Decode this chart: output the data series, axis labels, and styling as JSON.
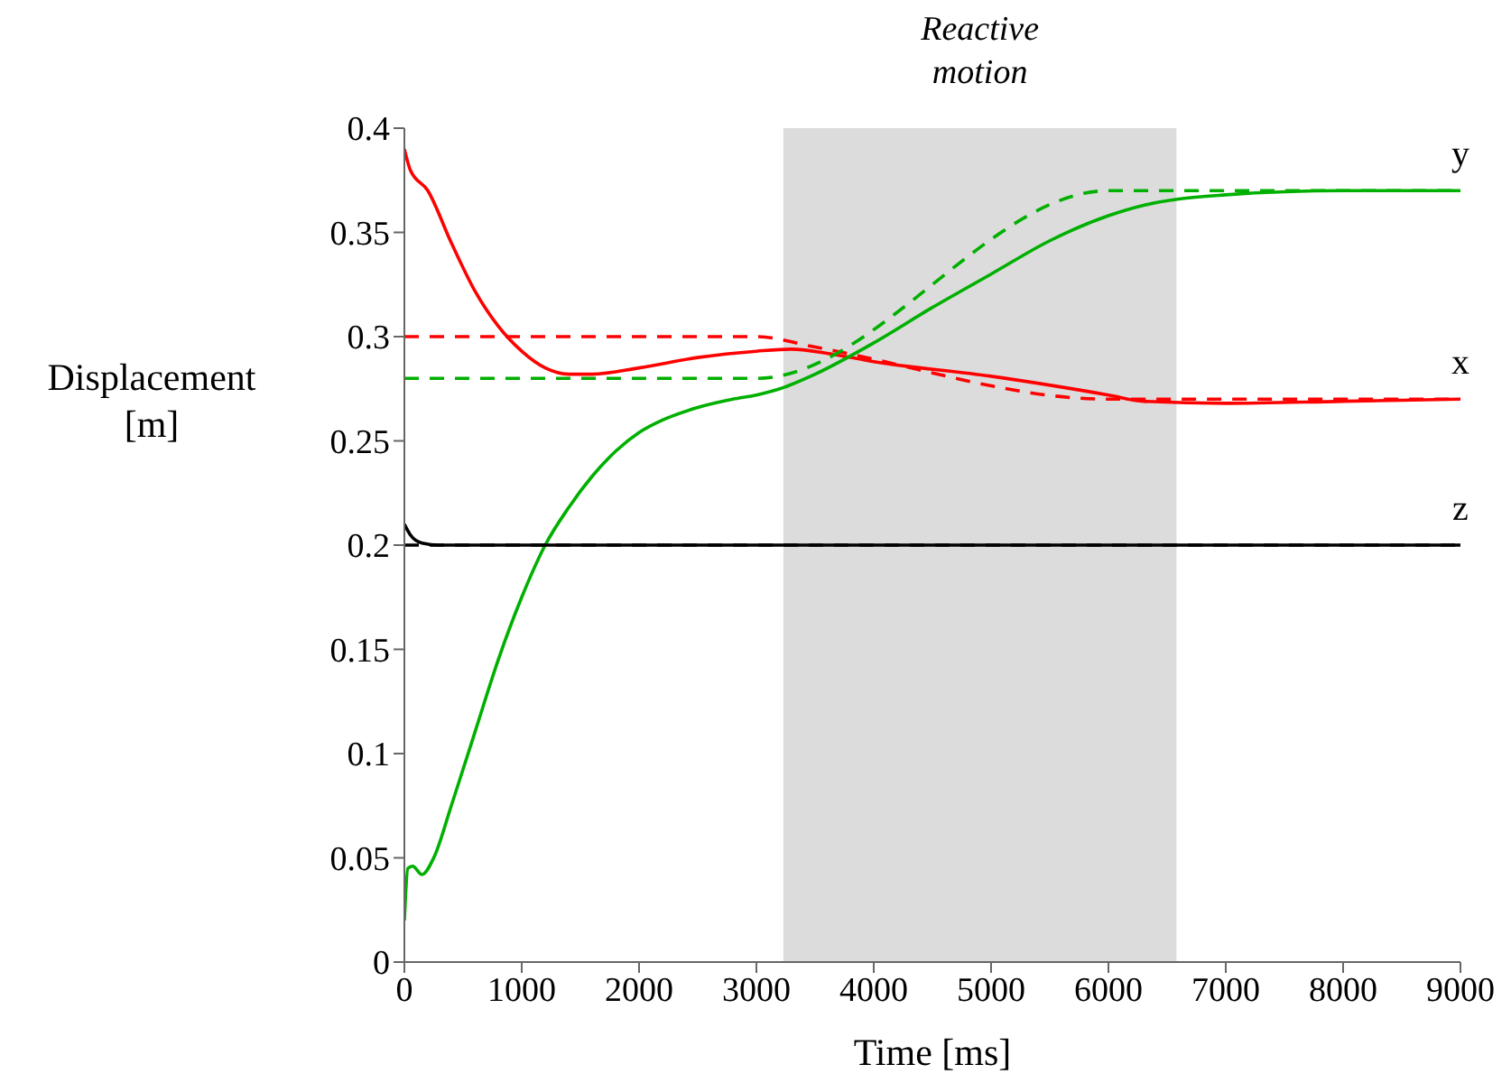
{
  "chart_data": {
    "type": "line",
    "xlabel": "Time [ms]",
    "ylabel": "Displacement [m]",
    "xlim": [
      0,
      9000
    ],
    "xticks": [
      0,
      1000,
      2000,
      3000,
      4000,
      5000,
      6000,
      7000,
      8000,
      9000
    ],
    "ylim": [
      0,
      0.4
    ],
    "yticks": [
      0,
      0.05,
      0.1,
      0.15,
      0.2,
      0.25,
      0.3,
      0.35,
      0.4
    ],
    "grid": false,
    "legend": false,
    "marker": "none",
    "bands": [
      {
        "axis": "x",
        "from": 3230,
        "to": 6580,
        "label": "Reactive motion",
        "color": "#dcdcdc"
      }
    ],
    "series": [
      {
        "name": "x",
        "color": "#ff0000",
        "line_style": "solid",
        "x": [
          0,
          50,
          200,
          400,
          600,
          800,
          1000,
          1200,
          1400,
          1600,
          2000,
          2500,
          3000,
          3300,
          3600,
          4000,
          5000,
          6000,
          6300,
          7000,
          8000,
          9000
        ],
        "values": [
          0.39,
          0.38,
          0.37,
          0.345,
          0.322,
          0.305,
          0.293,
          0.285,
          0.282,
          0.282,
          0.285,
          0.29,
          0.293,
          0.294,
          0.292,
          0.288,
          0.281,
          0.272,
          0.269,
          0.268,
          0.269,
          0.27
        ]
      },
      {
        "color": "#ff0000",
        "line_style": "dashed",
        "x": [
          0,
          3000,
          3500,
          6000,
          9000
        ],
        "values": [
          0.3,
          0.3,
          0.295,
          0.27,
          0.27
        ]
      },
      {
        "name": "y",
        "color": "#00b000",
        "line_style": "solid",
        "x": [
          0,
          30,
          70,
          150,
          250,
          400,
          600,
          800,
          1000,
          1200,
          1400,
          1600,
          1800,
          2000,
          2200,
          2500,
          2800,
          3000,
          3200,
          3500,
          4000,
          4500,
          5000,
          5500,
          6000,
          6300,
          6600,
          7000,
          8000,
          9000
        ],
        "values": [
          0.02,
          0.045,
          0.046,
          0.042,
          0.05,
          0.075,
          0.11,
          0.145,
          0.175,
          0.2,
          0.218,
          0.233,
          0.245,
          0.254,
          0.26,
          0.266,
          0.27,
          0.272,
          0.275,
          0.282,
          0.297,
          0.314,
          0.33,
          0.346,
          0.358,
          0.363,
          0.366,
          0.368,
          0.37,
          0.37
        ]
      },
      {
        "color": "#00b000",
        "line_style": "dashed",
        "x": [
          0,
          3000,
          6000,
          9000
        ],
        "values": [
          0.28,
          0.28,
          0.37,
          0.37
        ]
      },
      {
        "name": "z",
        "color": "#000000",
        "line_style": "solid",
        "x": [
          0,
          50,
          150,
          300,
          9000
        ],
        "values": [
          0.21,
          0.205,
          0.201,
          0.2,
          0.2
        ]
      },
      {
        "color": "#000000",
        "line_style": "dashed",
        "x": [
          0,
          9000
        ],
        "values": [
          0.2,
          0.2
        ]
      }
    ]
  }
}
